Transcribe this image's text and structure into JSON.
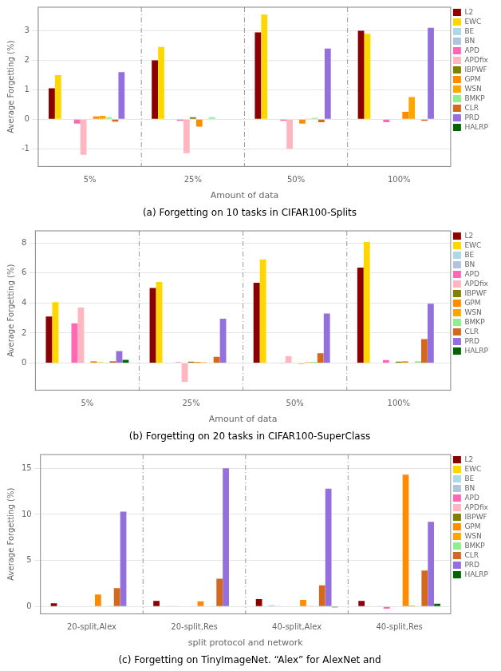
{
  "chart_data": [
    {
      "type": "bar",
      "title": "(a) Forgetting on 10 tasks in CIFAR100-Splits",
      "xlabel": "Amount of data",
      "ylabel": "Average Forgetting (%)",
      "categories": [
        "5%",
        "25%",
        "50%",
        "100%"
      ],
      "series": [
        {
          "name": "L2",
          "color": "#8B0000",
          "values": [
            1.05,
            2.0,
            2.95,
            3.0
          ]
        },
        {
          "name": "EWC",
          "color": "#FFD700",
          "values": [
            1.5,
            2.45,
            3.55,
            2.9
          ]
        },
        {
          "name": "BE",
          "color": "#ADD8E6",
          "values": [
            0.0,
            0.0,
            0.0,
            0.0
          ]
        },
        {
          "name": "BN",
          "color": "#B0C4DE",
          "values": [
            0.0,
            0.0,
            0.0,
            0.0
          ]
        },
        {
          "name": "APD",
          "color": "#FF69B4",
          "values": [
            -0.15,
            -0.05,
            -0.05,
            -0.1
          ]
        },
        {
          "name": "APDfix",
          "color": "#FFB6C1",
          "values": [
            -1.2,
            -1.15,
            -1.0,
            0.0
          ]
        },
        {
          "name": "IBPWF",
          "color": "#808000",
          "values": [
            0.0,
            0.07,
            0.0,
            0.0
          ]
        },
        {
          "name": "GPM",
          "color": "#FF8C00",
          "values": [
            0.1,
            -0.25,
            -0.15,
            0.25
          ]
        },
        {
          "name": "WSN",
          "color": "#FFA500",
          "values": [
            0.12,
            0.0,
            0.02,
            0.75
          ]
        },
        {
          "name": "BMKP",
          "color": "#90EE90",
          "values": [
            0.07,
            0.07,
            0.05,
            0.0
          ]
        },
        {
          "name": "CLR",
          "color": "#D2691E",
          "values": [
            -0.08,
            0.0,
            -0.1,
            -0.05
          ]
        },
        {
          "name": "PRD",
          "color": "#9370DB",
          "values": [
            1.6,
            0.0,
            2.4,
            3.1
          ]
        },
        {
          "name": "HALRP",
          "color": "#006400",
          "values": [
            0.0,
            0.0,
            0.0,
            0.0
          ]
        }
      ],
      "ylim": [
        -1.6,
        3.8
      ],
      "yticks": [
        -1,
        0,
        1,
        2,
        3
      ],
      "grid": true,
      "legend": "right"
    },
    {
      "type": "bar",
      "title": "(b) Forgetting on 20 tasks in CIFAR100-SuperClass",
      "xlabel": "Amount of data",
      "ylabel": "Average Forgetting (%)",
      "categories": [
        "5%",
        "25%",
        "50%",
        "100%"
      ],
      "series": [
        {
          "name": "L2",
          "color": "#8B0000",
          "values": [
            3.1,
            5.0,
            5.35,
            6.35
          ]
        },
        {
          "name": "EWC",
          "color": "#FFD700",
          "values": [
            4.05,
            5.4,
            6.9,
            8.05
          ]
        },
        {
          "name": "BE",
          "color": "#ADD8E6",
          "values": [
            0.0,
            0.0,
            0.0,
            0.0
          ]
        },
        {
          "name": "BN",
          "color": "#B0C4DE",
          "values": [
            0.0,
            0.0,
            0.0,
            0.0
          ]
        },
        {
          "name": "APD",
          "color": "#FF69B4",
          "values": [
            2.65,
            0.05,
            0.02,
            0.2
          ]
        },
        {
          "name": "APDfix",
          "color": "#FFB6C1",
          "values": [
            3.7,
            -1.25,
            0.45,
            0.0
          ]
        },
        {
          "name": "IBPWF",
          "color": "#808000",
          "values": [
            0.0,
            0.1,
            0.0,
            0.1
          ]
        },
        {
          "name": "GPM",
          "color": "#FF8C00",
          "values": [
            0.12,
            0.08,
            -0.05,
            0.12
          ]
        },
        {
          "name": "WSN",
          "color": "#FFA500",
          "values": [
            0.05,
            0.05,
            0.05,
            0.0
          ]
        },
        {
          "name": "BMKP",
          "color": "#90EE90",
          "values": [
            0.02,
            0.03,
            0.08,
            0.12
          ]
        },
        {
          "name": "CLR",
          "color": "#D2691E",
          "values": [
            0.12,
            0.42,
            0.65,
            1.6
          ]
        },
        {
          "name": "PRD",
          "color": "#9370DB",
          "values": [
            0.8,
            2.95,
            3.3,
            3.95
          ]
        },
        {
          "name": "HALRP",
          "color": "#006400",
          "values": [
            0.22,
            0.0,
            0.0,
            0.0
          ]
        }
      ],
      "ylim": [
        -1.8,
        8.8
      ],
      "yticks": [
        0,
        2,
        4,
        6,
        8
      ],
      "grid": true,
      "legend": "right"
    },
    {
      "type": "bar",
      "title": "(c) Forgetting on TinyImageNet. “Alex” for AlexNet and",
      "xlabel": "split protocol and network",
      "ylabel": "Average Forgetting (%)",
      "categories": [
        "20-split,Alex",
        "20-split,Res",
        "40-split,Alex",
        "40-split,Res"
      ],
      "series": [
        {
          "name": "L2",
          "color": "#8B0000",
          "values": [
            0.35,
            0.6,
            0.8,
            0.6
          ]
        },
        {
          "name": "EWC",
          "color": "#FFD700",
          "values": [
            0.0,
            0.0,
            0.0,
            0.05
          ]
        },
        {
          "name": "BE",
          "color": "#ADD8E6",
          "values": [
            0.0,
            0.02,
            0.15,
            0.0
          ]
        },
        {
          "name": "BN",
          "color": "#B0C4DE",
          "values": [
            0.0,
            0.05,
            0.05,
            0.05
          ]
        },
        {
          "name": "APD",
          "color": "#FF69B4",
          "values": [
            0.0,
            0.0,
            0.0,
            -0.25
          ]
        },
        {
          "name": "APDfix",
          "color": "#FFB6C1",
          "values": [
            0.0,
            0.0,
            0.0,
            0.0
          ]
        },
        {
          "name": "IBPWF",
          "color": "#808000",
          "values": [
            0.0,
            0.0,
            0.0,
            0.0
          ]
        },
        {
          "name": "GPM",
          "color": "#FF8C00",
          "values": [
            1.3,
            0.55,
            0.7,
            14.3
          ]
        },
        {
          "name": "WSN",
          "color": "#FFA500",
          "values": [
            0.0,
            0.0,
            0.02,
            0.1
          ]
        },
        {
          "name": "BMKP",
          "color": "#90EE90",
          "values": [
            0.02,
            0.02,
            0.02,
            0.05
          ]
        },
        {
          "name": "CLR",
          "color": "#D2691E",
          "values": [
            2.0,
            3.0,
            2.3,
            3.9
          ]
        },
        {
          "name": "PRD",
          "color": "#9370DB",
          "values": [
            10.3,
            15.0,
            12.8,
            9.2
          ]
        },
        {
          "name": "HALRP",
          "color": "#006400",
          "values": [
            0.0,
            0.0,
            -0.1,
            0.3
          ]
        }
      ],
      "ylim": [
        -0.8,
        16.5
      ],
      "yticks": [
        0,
        5,
        10,
        15
      ],
      "grid": true,
      "legend": "right"
    }
  ]
}
